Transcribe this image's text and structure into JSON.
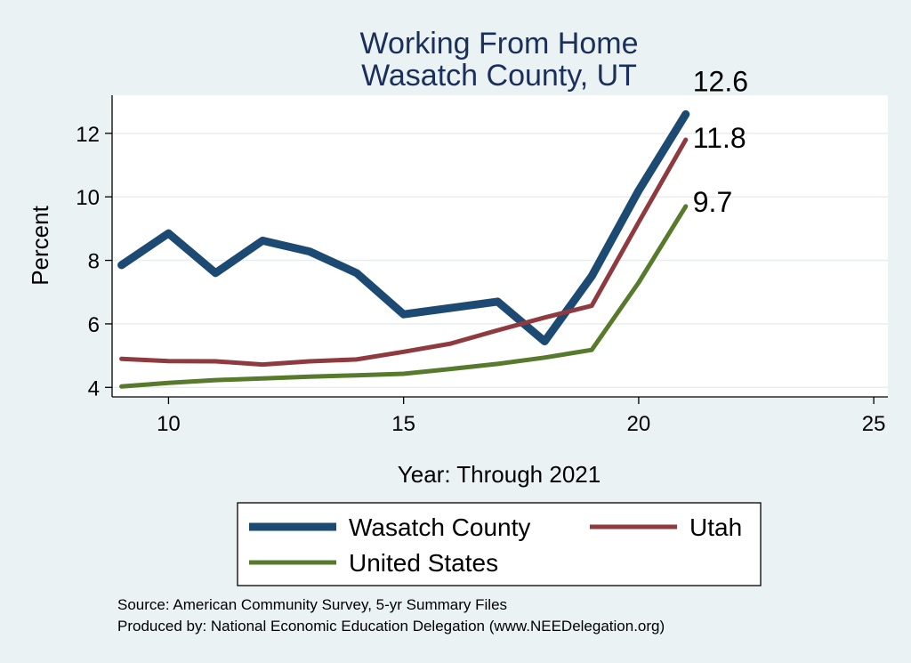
{
  "chart_data": {
    "type": "line",
    "title": [
      "Working From Home",
      "Wasatch County, UT"
    ],
    "xlabel": "Year: Through 2021",
    "ylabel": "Percent",
    "xlim": [
      8.8,
      25.3
    ],
    "ylim": [
      3.7,
      13.2
    ],
    "xticks": [
      10,
      15,
      20,
      25
    ],
    "yticks": [
      4,
      6,
      8,
      10,
      12
    ],
    "grid": true,
    "legend_position": "bottom",
    "series": [
      {
        "name": "Wasatch County",
        "color": "#1c4a72",
        "width": 9,
        "x": [
          9,
          10,
          11,
          12,
          13,
          14,
          15,
          16,
          17,
          18,
          19,
          20,
          21
        ],
        "values": [
          7.85,
          8.85,
          7.6,
          8.62,
          8.28,
          7.6,
          6.3,
          6.5,
          6.7,
          5.45,
          7.5,
          10.2,
          12.6
        ],
        "end_label": "12.6"
      },
      {
        "name": "Utah",
        "color": "#8e3a3f",
        "width": 5,
        "x": [
          9,
          10,
          11,
          12,
          13,
          14,
          15,
          16,
          17,
          18,
          19,
          20,
          21
        ],
        "values": [
          4.9,
          4.83,
          4.82,
          4.72,
          4.82,
          4.88,
          5.12,
          5.38,
          5.8,
          6.2,
          6.57,
          9.2,
          11.8
        ],
        "end_label": "11.8"
      },
      {
        "name": "United States",
        "color": "#577a2c",
        "width": 5,
        "x": [
          9,
          10,
          11,
          12,
          13,
          14,
          15,
          16,
          17,
          18,
          19,
          20,
          21
        ],
        "values": [
          4.03,
          4.14,
          4.23,
          4.28,
          4.34,
          4.38,
          4.43,
          4.58,
          4.74,
          4.94,
          5.18,
          7.3,
          9.7
        ],
        "end_label": "9.7"
      }
    ]
  },
  "notes": [
    "Source: American Community Survey, 5-yr Summary Files",
    "Produced by: National Economic Education Delegation (www.NEEDelegation.org)"
  ]
}
